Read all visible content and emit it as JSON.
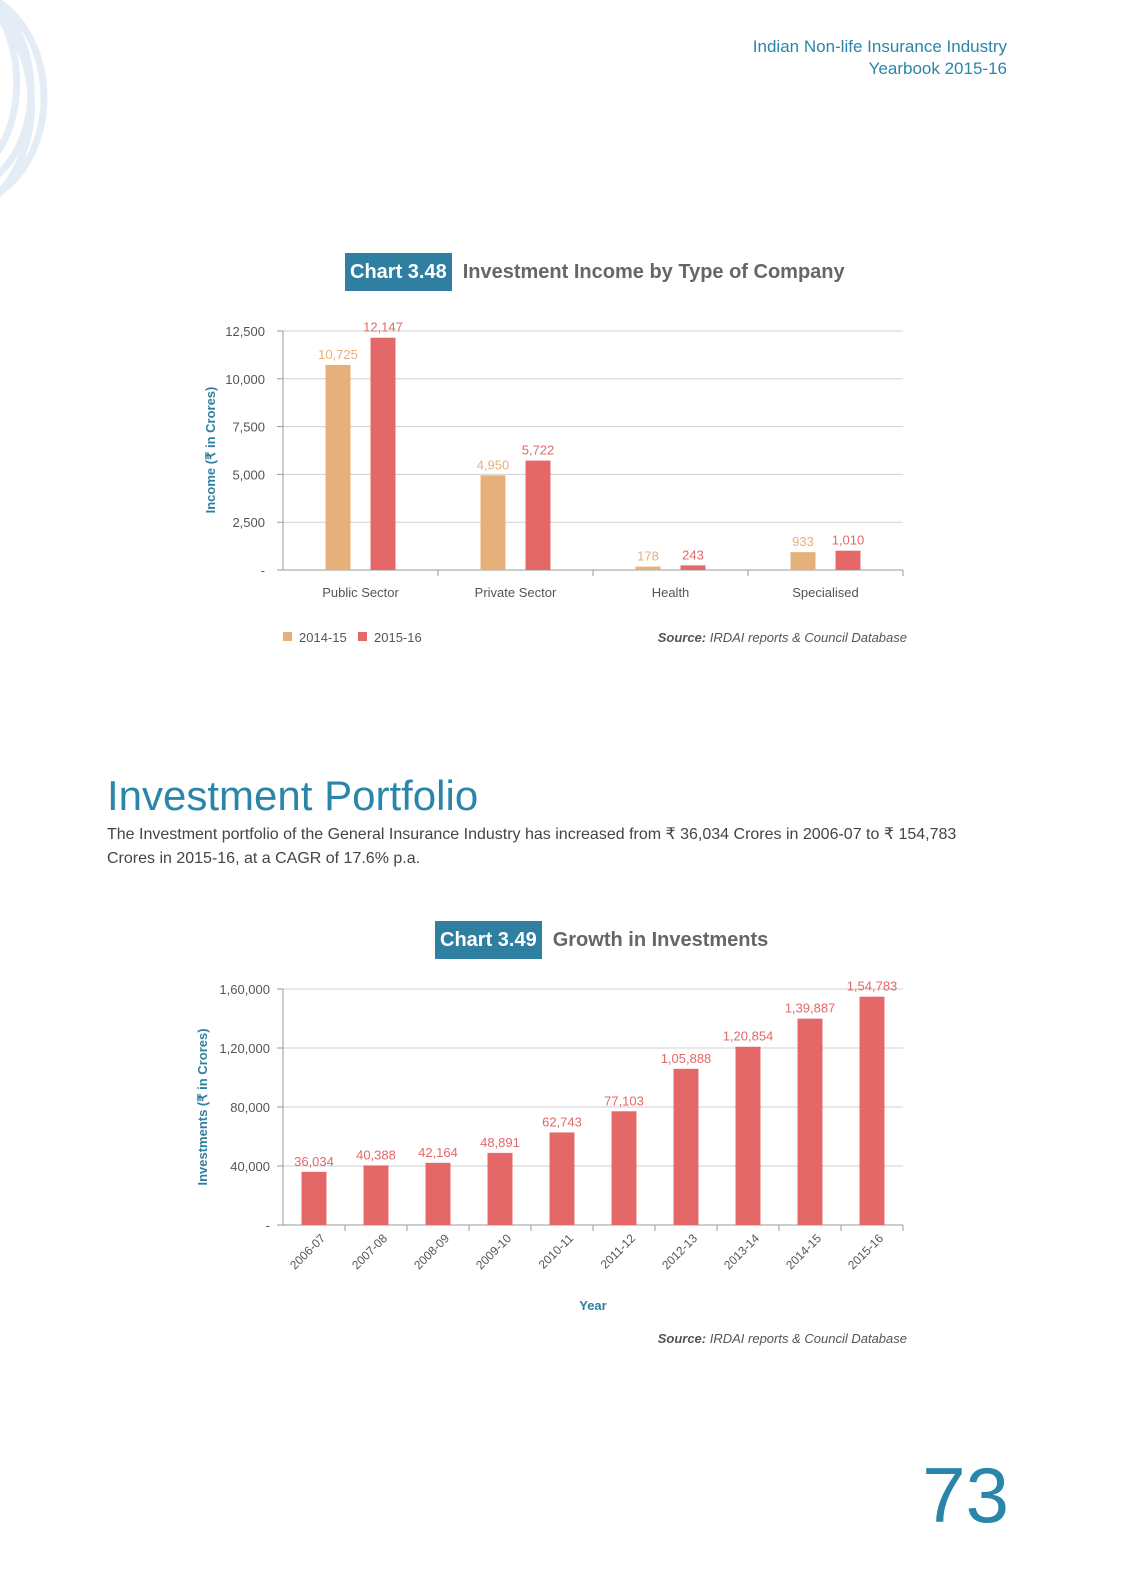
{
  "header": {
    "line1": "Indian Non-life Insurance Industry",
    "line2": "Yearbook 2015-16"
  },
  "chart1": {
    "badge": "Chart 3.48",
    "name": "Investment Income by Type of Company",
    "source_label": "Source:",
    "source_text": "IRDAI reports & Council Database"
  },
  "section": {
    "heading": "Investment Portfolio",
    "body": "The Investment portfolio of the General Insurance Industry has increased from ₹ 36,034 Crores in 2006-07 to ₹ 154,783 Crores in 2015-16, at a CAGR of 17.6% p.a."
  },
  "chart2": {
    "badge": "Chart 3.49",
    "name": "Growth in Investments",
    "source_label": "Source:",
    "source_text": "IRDAI reports & Council Database"
  },
  "page_number": "73",
  "colors": {
    "accent": "#2f7fa1",
    "series_2014": "#e6b07a",
    "series_2015": "#e46868"
  },
  "chart_data": [
    {
      "type": "bar",
      "title": "Investment Income by Type of Company",
      "ylabel": "Income (₹ in Crores)",
      "ylim": [
        0,
        12500
      ],
      "yticks": [
        0,
        2500,
        5000,
        7500,
        10000,
        12500
      ],
      "ytick_labels": [
        "-",
        "2,500",
        "5,000",
        "7,500",
        "10,000",
        "12,500"
      ],
      "categories": [
        "Public Sector",
        "Private Sector",
        "Health",
        "Specialised"
      ],
      "series": [
        {
          "name": "2014-15",
          "values": [
            10725,
            4950,
            178,
            933
          ],
          "labels": [
            "10,725",
            "4,950",
            "178",
            "933"
          ]
        },
        {
          "name": "2015-16",
          "values": [
            12147,
            5722,
            243,
            1010
          ],
          "labels": [
            "12,147",
            "5,722",
            "243",
            "1,010"
          ]
        }
      ],
      "legend": "bottom-left",
      "grid": true
    },
    {
      "type": "bar",
      "title": "Growth in Investments",
      "xlabel": "Year",
      "ylabel": "Investments (₹ in Crores)",
      "ylim": [
        0,
        160000
      ],
      "yticks": [
        0,
        40000,
        80000,
        120000,
        160000
      ],
      "ytick_labels": [
        "-",
        "40,000",
        "80,000",
        "1,20,000",
        "1,60,000"
      ],
      "categories": [
        "2006-07",
        "2007-08",
        "2008-09",
        "2009-10",
        "2010-11",
        "2011-12",
        "2012-13",
        "2013-14",
        "2014-15",
        "2015-16"
      ],
      "values": [
        36034,
        40388,
        42164,
        48891,
        62743,
        77103,
        105888,
        120854,
        139887,
        154783
      ],
      "labels": [
        "36,034",
        "40,388",
        "42,164",
        "48,891",
        "62,743",
        "77,103",
        "1,05,888",
        "1,20,854",
        "1,39,887",
        "1,54,783"
      ],
      "grid": true
    }
  ]
}
